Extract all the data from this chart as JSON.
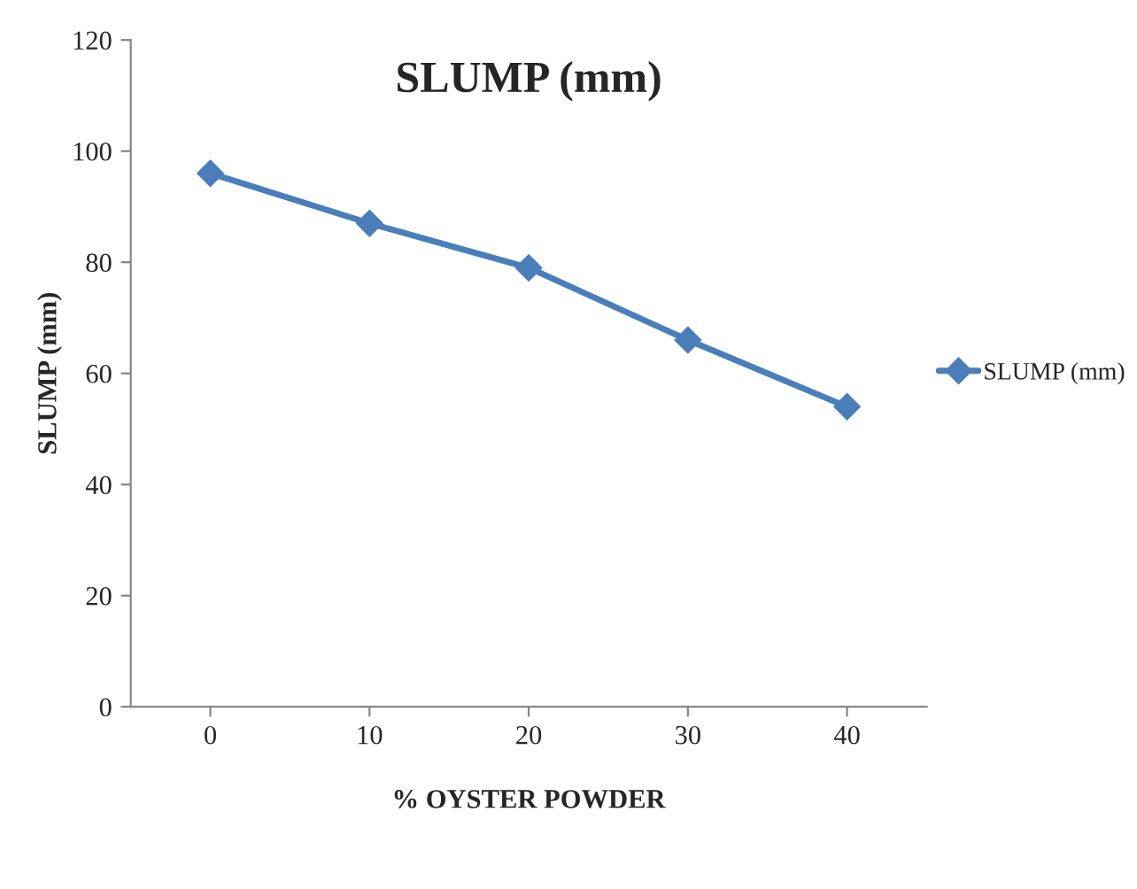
{
  "chart_data": {
    "type": "line",
    "title": "SLUMP (mm)",
    "xlabel": "% OYSTER POWDER",
    "ylabel": "SLUMP (mm)",
    "categories": [
      "0",
      "10",
      "20",
      "30",
      "40"
    ],
    "series": [
      {
        "name": "SLUMP (mm)",
        "color": "#4a7ebb",
        "values": [
          96,
          87,
          79,
          66,
          54
        ]
      }
    ],
    "ylim": [
      0,
      120
    ],
    "yticks": [
      0,
      20,
      40,
      60,
      80,
      100,
      120
    ],
    "grid": false,
    "legend": "right",
    "marker": "diamond",
    "line_style": "solid"
  }
}
